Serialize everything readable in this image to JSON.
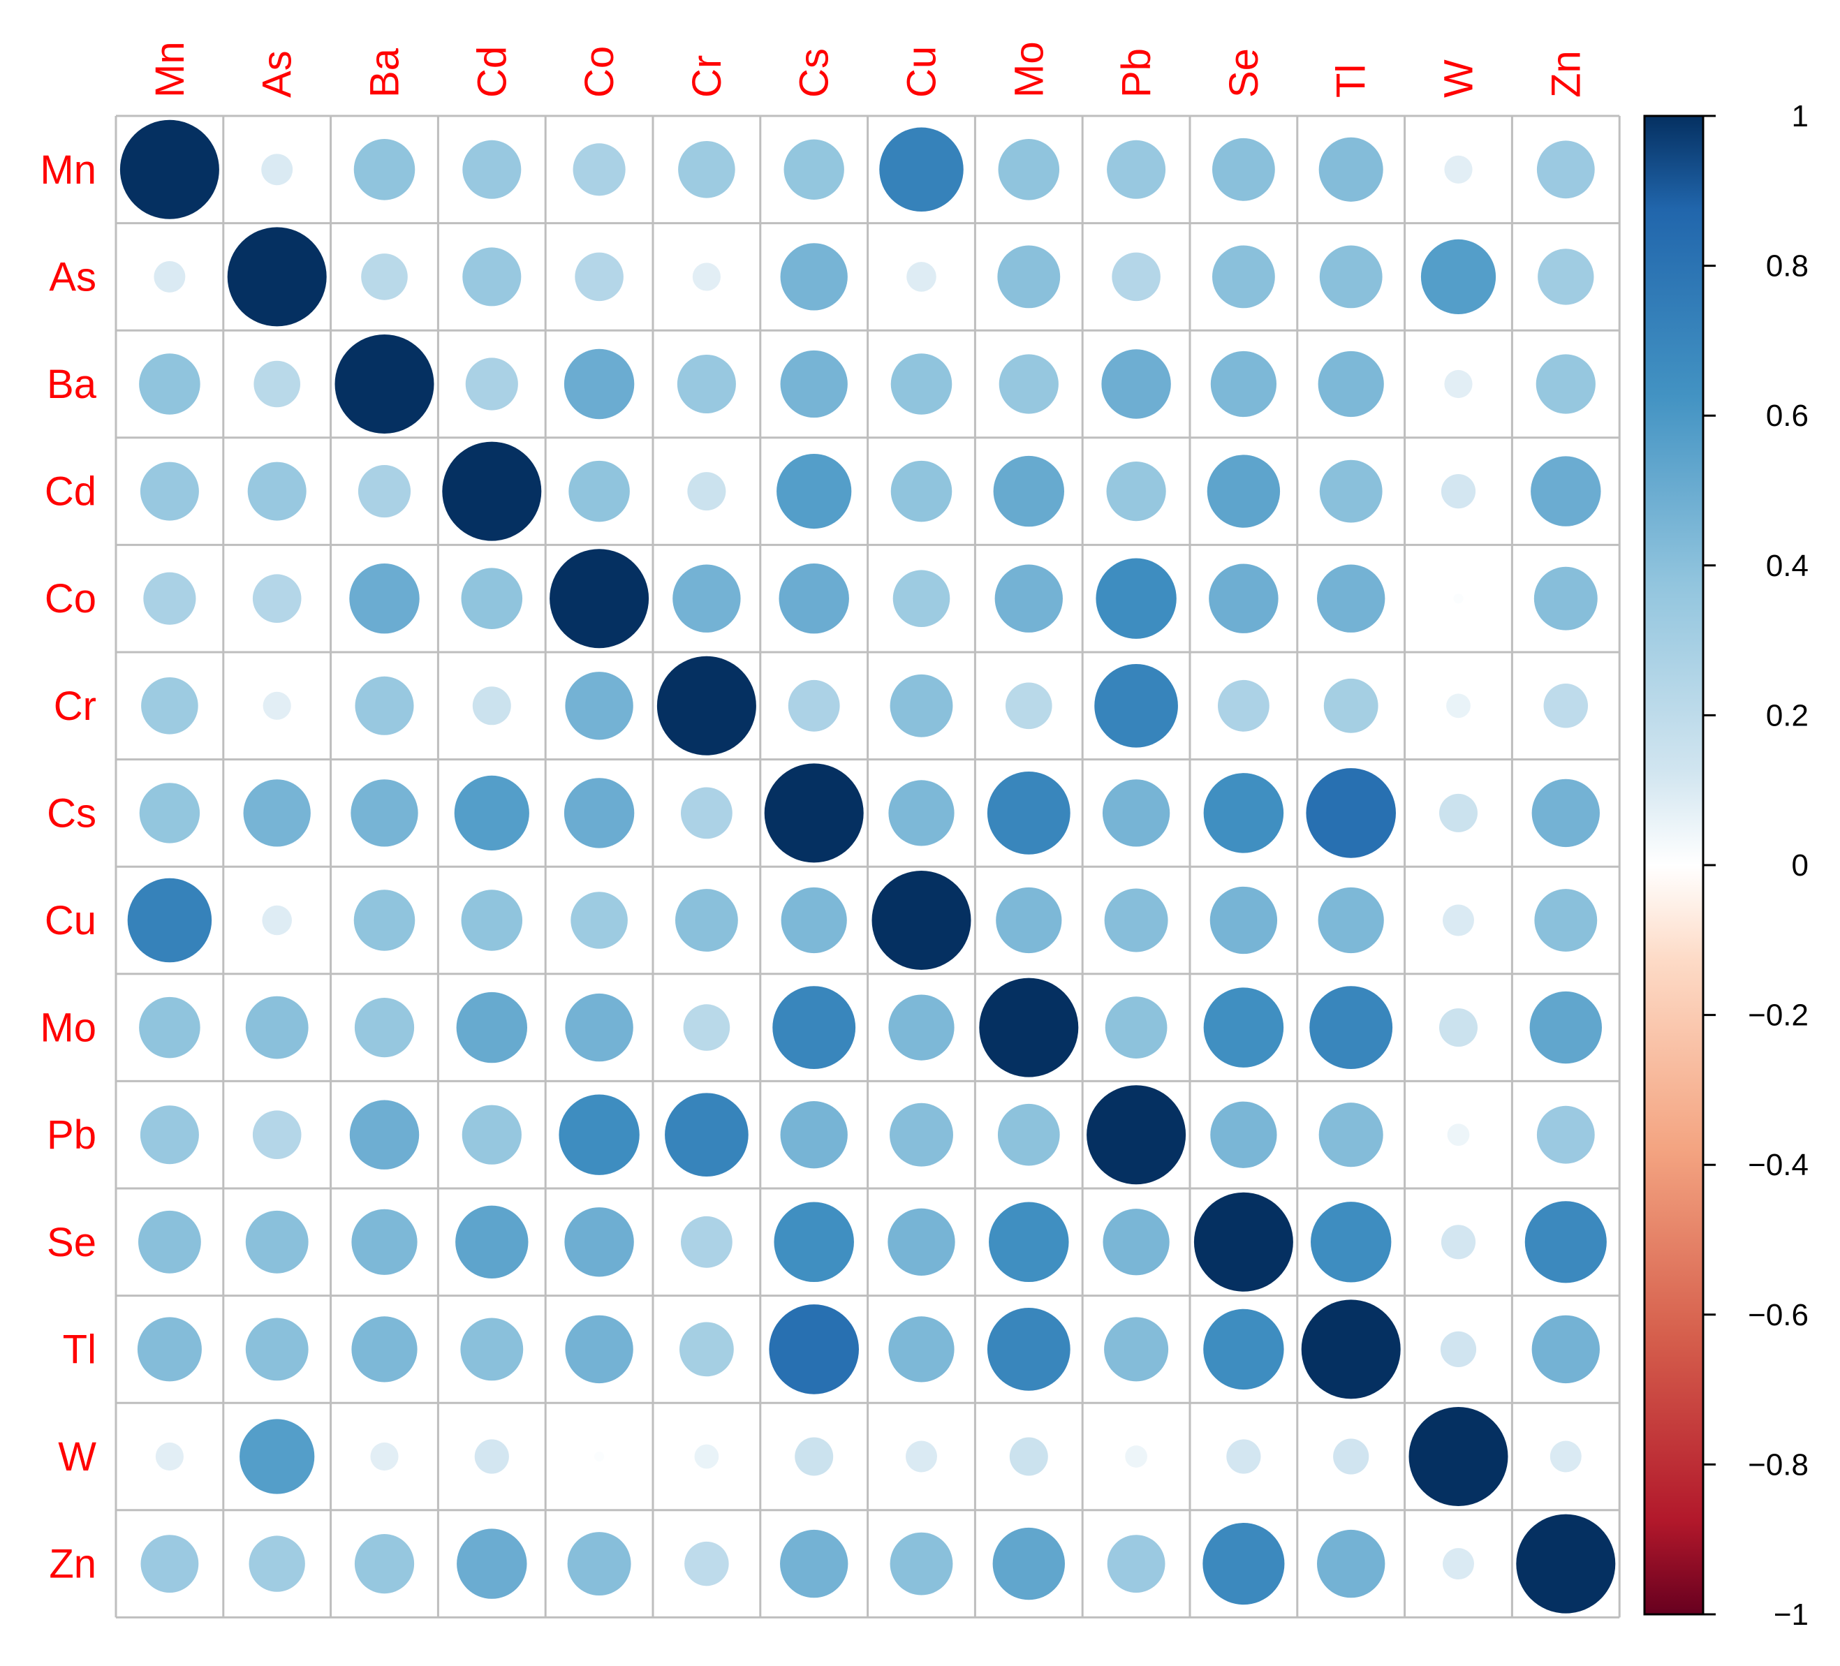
{
  "chart_data": {
    "type": "heatmap",
    "title": "",
    "xlabel": "",
    "ylabel": "",
    "variables": [
      "Mn",
      "As",
      "Ba",
      "Cd",
      "Co",
      "Cr",
      "Cs",
      "Cu",
      "Mo",
      "Pb",
      "Se",
      "Tl",
      "W",
      "Zn"
    ],
    "values": [
      [
        1.0,
        0.1,
        0.38,
        0.35,
        0.28,
        0.33,
        0.37,
        0.72,
        0.38,
        0.35,
        0.4,
        0.42,
        0.08,
        0.34
      ],
      [
        0.1,
        1.0,
        0.22,
        0.35,
        0.24,
        0.08,
        0.46,
        0.09,
        0.4,
        0.24,
        0.4,
        0.4,
        0.57,
        0.32
      ],
      [
        0.38,
        0.22,
        1.0,
        0.28,
        0.5,
        0.35,
        0.46,
        0.38,
        0.36,
        0.49,
        0.44,
        0.44,
        0.08,
        0.36
      ],
      [
        0.35,
        0.35,
        0.28,
        1.0,
        0.38,
        0.15,
        0.57,
        0.38,
        0.51,
        0.36,
        0.54,
        0.4,
        0.12,
        0.5
      ],
      [
        0.28,
        0.24,
        0.5,
        0.38,
        1.0,
        0.47,
        0.5,
        0.33,
        0.47,
        0.66,
        0.49,
        0.47,
        0.01,
        0.41
      ],
      [
        0.33,
        0.08,
        0.35,
        0.15,
        0.47,
        1.0,
        0.27,
        0.4,
        0.22,
        0.71,
        0.27,
        0.3,
        0.06,
        0.2
      ],
      [
        0.37,
        0.46,
        0.46,
        0.57,
        0.5,
        0.27,
        1.0,
        0.44,
        0.7,
        0.46,
        0.65,
        0.82,
        0.15,
        0.47
      ],
      [
        0.72,
        0.09,
        0.38,
        0.38,
        0.33,
        0.4,
        0.44,
        1.0,
        0.44,
        0.41,
        0.46,
        0.44,
        0.1,
        0.4
      ],
      [
        0.38,
        0.4,
        0.36,
        0.51,
        0.47,
        0.22,
        0.7,
        0.44,
        1.0,
        0.39,
        0.65,
        0.7,
        0.15,
        0.53
      ],
      [
        0.35,
        0.24,
        0.49,
        0.36,
        0.66,
        0.71,
        0.46,
        0.41,
        0.39,
        1.0,
        0.45,
        0.42,
        0.05,
        0.34
      ],
      [
        0.4,
        0.4,
        0.44,
        0.54,
        0.49,
        0.27,
        0.65,
        0.46,
        0.65,
        0.45,
        1.0,
        0.66,
        0.12,
        0.68
      ],
      [
        0.42,
        0.4,
        0.44,
        0.4,
        0.47,
        0.3,
        0.82,
        0.44,
        0.7,
        0.42,
        0.66,
        1.0,
        0.13,
        0.47
      ],
      [
        0.08,
        0.57,
        0.08,
        0.12,
        0.01,
        0.06,
        0.15,
        0.1,
        0.15,
        0.05,
        0.12,
        0.13,
        1.0,
        0.1
      ],
      [
        0.34,
        0.32,
        0.36,
        0.5,
        0.41,
        0.2,
        0.47,
        0.4,
        0.53,
        0.34,
        0.68,
        0.47,
        0.1,
        1.0
      ]
    ],
    "color_scale": {
      "range": [
        -1,
        1
      ],
      "ticks": [
        1,
        0.8,
        0.6,
        0.4,
        0.2,
        0,
        -0.2,
        -0.4,
        -0.6,
        -0.8,
        -1
      ],
      "tick_labels": [
        "1",
        "0.8",
        "0.6",
        "0.4",
        "0.2",
        "0",
        "−0.2",
        "−0.4",
        "−0.6",
        "−0.8",
        "−1"
      ],
      "stops": [
        {
          "v": -1.0,
          "color": "#67001F"
        },
        {
          "v": -0.875,
          "color": "#B2182B"
        },
        {
          "v": -0.625,
          "color": "#D6604D"
        },
        {
          "v": -0.375,
          "color": "#F4A582"
        },
        {
          "v": -0.125,
          "color": "#FDDBC7"
        },
        {
          "v": 0.0,
          "color": "#FFFFFF"
        },
        {
          "v": 0.125,
          "color": "#D1E5F0"
        },
        {
          "v": 0.375,
          "color": "#92C5DE"
        },
        {
          "v": 0.625,
          "color": "#4393C3"
        },
        {
          "v": 0.875,
          "color": "#2166AC"
        },
        {
          "v": 1.0,
          "color": "#053061"
        }
      ]
    },
    "label_color": "#FF0000",
    "grid": true,
    "grid_color": "#BEBEBE",
    "legend_position": "right"
  }
}
